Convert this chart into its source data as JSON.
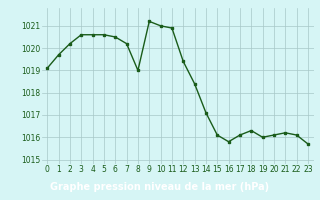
{
  "x": [
    0,
    1,
    2,
    3,
    4,
    5,
    6,
    7,
    8,
    9,
    10,
    11,
    12,
    13,
    14,
    15,
    16,
    17,
    18,
    19,
    20,
    21,
    22,
    23
  ],
  "y": [
    1019.1,
    1019.7,
    1020.2,
    1020.6,
    1020.6,
    1020.6,
    1020.5,
    1020.2,
    1019.0,
    1021.2,
    1021.0,
    1020.9,
    1019.4,
    1018.4,
    1017.1,
    1016.1,
    1015.8,
    1016.1,
    1016.3,
    1016.0,
    1016.1,
    1016.2,
    1016.1,
    1015.7
  ],
  "line_color": "#1a5c1a",
  "marker": "s",
  "marker_size": 2.0,
  "bg_color": "#d6f5f5",
  "grid_color": "#a8c8c8",
  "xlabel": "Graphe pression niveau de la mer (hPa)",
  "xlabel_bg": "#2d6a2d",
  "xlabel_fg": "#ffffff",
  "ylim_min": 1014.8,
  "ylim_max": 1021.8,
  "ytick_values": [
    1015,
    1016,
    1017,
    1018,
    1019,
    1020,
    1021
  ],
  "xtick_values": [
    0,
    1,
    2,
    3,
    4,
    5,
    6,
    7,
    8,
    9,
    10,
    11,
    12,
    13,
    14,
    15,
    16,
    17,
    18,
    19,
    20,
    21,
    22,
    23
  ],
  "tick_fontsize": 5.5,
  "xlabel_fontsize": 7,
  "line_width": 1.0
}
